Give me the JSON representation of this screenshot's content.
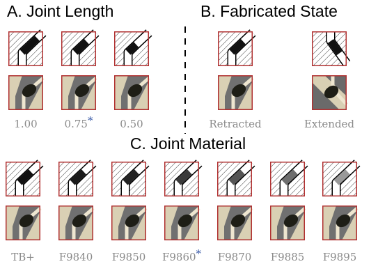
{
  "panels": [
    {
      "title": "A. Joint Length",
      "items": [
        {
          "label": "1.00"
        },
        {
          "label": "0.75",
          "marker": "*"
        },
        {
          "label": "0.50"
        }
      ]
    },
    {
      "title": "B. Fabricated State",
      "items": [
        {
          "label": "Retracted"
        },
        {
          "label": "Extended"
        }
      ]
    },
    {
      "title": "C. Joint Material",
      "items": [
        {
          "label": "TB+"
        },
        {
          "label": "F9840"
        },
        {
          "label": "F9850"
        },
        {
          "label": "F9860",
          "marker": "*"
        },
        {
          "label": "F9870"
        },
        {
          "label": "F9885"
        },
        {
          "label": "F9895"
        }
      ]
    }
  ]
}
